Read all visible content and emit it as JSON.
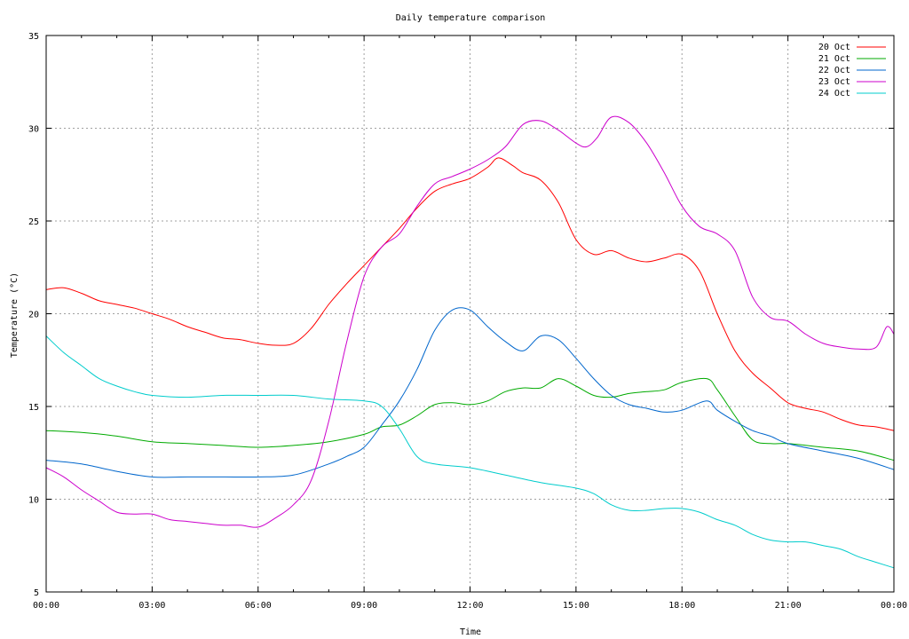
{
  "chart_data": {
    "type": "line",
    "title": "Daily temperature comparison",
    "xlabel": "Time",
    "ylabel": "Temperature (°C)",
    "xlim": [
      0,
      24
    ],
    "ylim": [
      5,
      35
    ],
    "x_ticks": [
      {
        "v": 0,
        "label": "00:00"
      },
      {
        "v": 3,
        "label": "03:00"
      },
      {
        "v": 6,
        "label": "06:00"
      },
      {
        "v": 9,
        "label": "09:00"
      },
      {
        "v": 12,
        "label": "12:00"
      },
      {
        "v": 15,
        "label": "15:00"
      },
      {
        "v": 18,
        "label": "18:00"
      },
      {
        "v": 21,
        "label": "21:00"
      },
      {
        "v": 24,
        "label": "00:00"
      }
    ],
    "y_ticks": [
      {
        "v": 5,
        "label": "5"
      },
      {
        "v": 10,
        "label": "10"
      },
      {
        "v": 15,
        "label": "15"
      },
      {
        "v": 20,
        "label": "20"
      },
      {
        "v": 25,
        "label": "25"
      },
      {
        "v": 30,
        "label": "30"
      },
      {
        "v": 35,
        "label": "35"
      }
    ],
    "grid": true,
    "legend_position": "top-right",
    "x_unit_note": "hours",
    "series": [
      {
        "name": "20 Oct",
        "color": "#ff0000",
        "points": [
          [
            0,
            21.3
          ],
          [
            0.5,
            21.4
          ],
          [
            1,
            21.1
          ],
          [
            1.5,
            20.7
          ],
          [
            2,
            20.5
          ],
          [
            2.5,
            20.3
          ],
          [
            3,
            20.0
          ],
          [
            3.5,
            19.7
          ],
          [
            4,
            19.3
          ],
          [
            4.5,
            19.0
          ],
          [
            5,
            18.7
          ],
          [
            5.5,
            18.6
          ],
          [
            6,
            18.4
          ],
          [
            6.5,
            18.3
          ],
          [
            7,
            18.4
          ],
          [
            7.5,
            19.2
          ],
          [
            8,
            20.5
          ],
          [
            8.5,
            21.6
          ],
          [
            9,
            22.6
          ],
          [
            9.5,
            23.6
          ],
          [
            10,
            24.6
          ],
          [
            10.5,
            25.7
          ],
          [
            11,
            26.6
          ],
          [
            11.5,
            27.0
          ],
          [
            12,
            27.3
          ],
          [
            12.5,
            27.9
          ],
          [
            12.8,
            28.4
          ],
          [
            13.2,
            28.0
          ],
          [
            13.5,
            27.6
          ],
          [
            14,
            27.2
          ],
          [
            14.5,
            26.0
          ],
          [
            15,
            24.0
          ],
          [
            15.5,
            23.2
          ],
          [
            16,
            23.4
          ],
          [
            16.5,
            23.0
          ],
          [
            17,
            22.8
          ],
          [
            17.5,
            23.0
          ],
          [
            18,
            23.2
          ],
          [
            18.5,
            22.3
          ],
          [
            19,
            20.0
          ],
          [
            19.5,
            18.0
          ],
          [
            20,
            16.8
          ],
          [
            20.5,
            16.0
          ],
          [
            21,
            15.2
          ],
          [
            21.5,
            14.9
          ],
          [
            22,
            14.7
          ],
          [
            22.5,
            14.3
          ],
          [
            23,
            14.0
          ],
          [
            23.5,
            13.9
          ],
          [
            24,
            13.7
          ]
        ]
      },
      {
        "name": "21 Oct",
        "color": "#00aa00",
        "points": [
          [
            0,
            13.7
          ],
          [
            1,
            13.6
          ],
          [
            2,
            13.4
          ],
          [
            3,
            13.1
          ],
          [
            4,
            13.0
          ],
          [
            5,
            12.9
          ],
          [
            6,
            12.8
          ],
          [
            7,
            12.9
          ],
          [
            8,
            13.1
          ],
          [
            9,
            13.5
          ],
          [
            9.5,
            13.9
          ],
          [
            10,
            14.0
          ],
          [
            10.5,
            14.5
          ],
          [
            11,
            15.1
          ],
          [
            11.5,
            15.2
          ],
          [
            12,
            15.1
          ],
          [
            12.5,
            15.3
          ],
          [
            13,
            15.8
          ],
          [
            13.5,
            16.0
          ],
          [
            14,
            16.0
          ],
          [
            14.5,
            16.5
          ],
          [
            15,
            16.1
          ],
          [
            15.5,
            15.6
          ],
          [
            16,
            15.5
          ],
          [
            16.5,
            15.7
          ],
          [
            17,
            15.8
          ],
          [
            17.5,
            15.9
          ],
          [
            18,
            16.3
          ],
          [
            18.7,
            16.5
          ],
          [
            19,
            15.9
          ],
          [
            19.5,
            14.5
          ],
          [
            20,
            13.2
          ],
          [
            20.5,
            13.0
          ],
          [
            21,
            13.0
          ],
          [
            22,
            12.8
          ],
          [
            23,
            12.6
          ],
          [
            24,
            12.1
          ]
        ]
      },
      {
        "name": "22 Oct",
        "color": "#0066cc",
        "points": [
          [
            0,
            12.1
          ],
          [
            1,
            11.9
          ],
          [
            2,
            11.5
          ],
          [
            3,
            11.2
          ],
          [
            4,
            11.2
          ],
          [
            5,
            11.2
          ],
          [
            6,
            11.2
          ],
          [
            7,
            11.3
          ],
          [
            8,
            11.9
          ],
          [
            8.5,
            12.3
          ],
          [
            9,
            12.8
          ],
          [
            9.5,
            14.0
          ],
          [
            10,
            15.3
          ],
          [
            10.5,
            17.0
          ],
          [
            11,
            19.1
          ],
          [
            11.5,
            20.2
          ],
          [
            12,
            20.2
          ],
          [
            12.5,
            19.3
          ],
          [
            13,
            18.5
          ],
          [
            13.5,
            18.0
          ],
          [
            14,
            18.8
          ],
          [
            14.5,
            18.6
          ],
          [
            15,
            17.6
          ],
          [
            15.5,
            16.5
          ],
          [
            16,
            15.6
          ],
          [
            16.5,
            15.1
          ],
          [
            17,
            14.9
          ],
          [
            17.5,
            14.7
          ],
          [
            18,
            14.8
          ],
          [
            18.7,
            15.3
          ],
          [
            19,
            14.8
          ],
          [
            19.5,
            14.2
          ],
          [
            20,
            13.7
          ],
          [
            20.5,
            13.4
          ],
          [
            21,
            13.0
          ],
          [
            22,
            12.6
          ],
          [
            23,
            12.2
          ],
          [
            24,
            11.6
          ]
        ]
      },
      {
        "name": "23 Oct",
        "color": "#cc00cc",
        "points": [
          [
            0,
            11.7
          ],
          [
            0.5,
            11.2
          ],
          [
            1,
            10.5
          ],
          [
            1.5,
            9.9
          ],
          [
            2,
            9.3
          ],
          [
            2.5,
            9.2
          ],
          [
            3,
            9.2
          ],
          [
            3.5,
            8.9
          ],
          [
            4,
            8.8
          ],
          [
            4.5,
            8.7
          ],
          [
            5,
            8.6
          ],
          [
            5.5,
            8.6
          ],
          [
            6,
            8.5
          ],
          [
            6.5,
            9.0
          ],
          [
            7,
            9.7
          ],
          [
            7.5,
            11.0
          ],
          [
            8,
            14.2
          ],
          [
            8.5,
            18.4
          ],
          [
            9,
            22.0
          ],
          [
            9.5,
            23.6
          ],
          [
            10,
            24.3
          ],
          [
            10.5,
            25.8
          ],
          [
            11,
            27.0
          ],
          [
            11.5,
            27.4
          ],
          [
            12,
            27.8
          ],
          [
            12.5,
            28.3
          ],
          [
            13,
            29.0
          ],
          [
            13.5,
            30.2
          ],
          [
            14,
            30.4
          ],
          [
            14.5,
            29.9
          ],
          [
            15,
            29.2
          ],
          [
            15.3,
            29.0
          ],
          [
            15.6,
            29.5
          ],
          [
            16,
            30.6
          ],
          [
            16.5,
            30.3
          ],
          [
            17,
            29.2
          ],
          [
            17.5,
            27.6
          ],
          [
            18,
            25.8
          ],
          [
            18.5,
            24.7
          ],
          [
            19,
            24.3
          ],
          [
            19.5,
            23.4
          ],
          [
            20,
            20.9
          ],
          [
            20.5,
            19.8
          ],
          [
            21,
            19.6
          ],
          [
            21.5,
            18.9
          ],
          [
            22,
            18.4
          ],
          [
            22.5,
            18.2
          ],
          [
            23,
            18.1
          ],
          [
            23.5,
            18.2
          ],
          [
            23.8,
            19.3
          ],
          [
            24,
            18.9
          ]
        ]
      },
      {
        "name": "24 Oct",
        "color": "#00cccc",
        "points": [
          [
            0,
            18.8
          ],
          [
            0.5,
            17.9
          ],
          [
            1,
            17.2
          ],
          [
            1.5,
            16.5
          ],
          [
            2,
            16.1
          ],
          [
            2.5,
            15.8
          ],
          [
            3,
            15.6
          ],
          [
            4,
            15.5
          ],
          [
            5,
            15.6
          ],
          [
            6,
            15.6
          ],
          [
            7,
            15.6
          ],
          [
            8,
            15.4
          ],
          [
            9,
            15.3
          ],
          [
            9.5,
            15.0
          ],
          [
            10,
            13.8
          ],
          [
            10.5,
            12.3
          ],
          [
            11,
            11.9
          ],
          [
            12,
            11.7
          ],
          [
            13,
            11.3
          ],
          [
            14,
            10.9
          ],
          [
            15,
            10.6
          ],
          [
            15.5,
            10.3
          ],
          [
            16,
            9.7
          ],
          [
            16.5,
            9.4
          ],
          [
            17,
            9.4
          ],
          [
            17.5,
            9.5
          ],
          [
            18,
            9.5
          ],
          [
            18.5,
            9.3
          ],
          [
            19,
            8.9
          ],
          [
            19.5,
            8.6
          ],
          [
            20,
            8.1
          ],
          [
            20.5,
            7.8
          ],
          [
            21,
            7.7
          ],
          [
            21.5,
            7.7
          ],
          [
            22,
            7.5
          ],
          [
            22.5,
            7.3
          ],
          [
            23,
            6.9
          ],
          [
            23.5,
            6.6
          ],
          [
            24,
            6.3
          ]
        ]
      }
    ]
  }
}
